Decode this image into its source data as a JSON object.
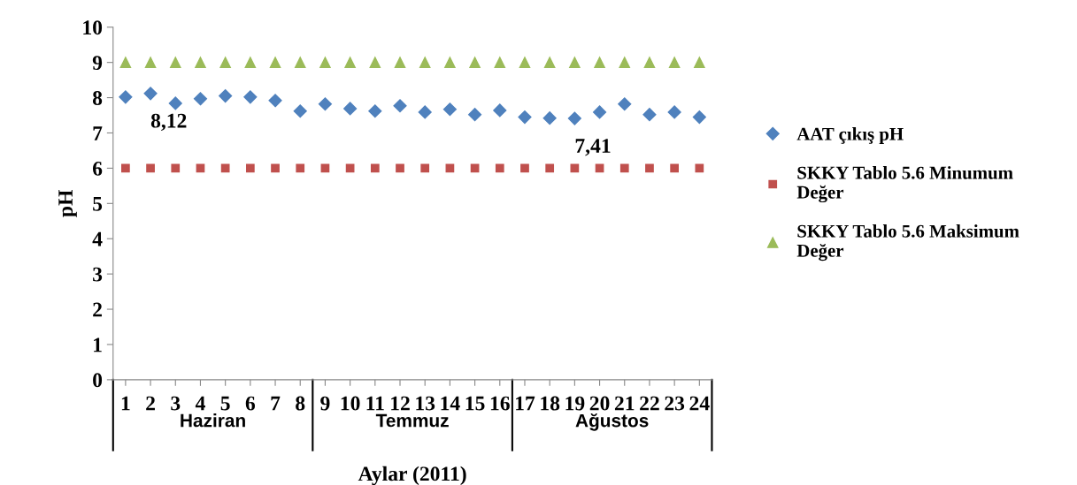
{
  "chart_data": {
    "type": "scatter",
    "xlabel": "Aylar (2011)",
    "ylabel": "pH",
    "categories": [
      "1",
      "2",
      "3",
      "4",
      "5",
      "6",
      "7",
      "8",
      "9",
      "10",
      "11",
      "12",
      "13",
      "14",
      "15",
      "16",
      "17",
      "18",
      "19",
      "20",
      "21",
      "22",
      "23",
      "24"
    ],
    "series": [
      {
        "name": "AAT çıkış pH",
        "color": "#4f81bd",
        "marker": "diamond",
        "values": [
          8.02,
          8.12,
          7.84,
          7.97,
          8.05,
          8.02,
          7.92,
          7.62,
          7.82,
          7.69,
          7.62,
          7.77,
          7.59,
          7.67,
          7.52,
          7.64,
          7.45,
          7.42,
          7.41,
          7.59,
          7.82,
          7.52,
          7.59,
          7.45
        ],
        "value_labels": [
          null,
          "8,12",
          null,
          null,
          null,
          null,
          null,
          null,
          null,
          null,
          null,
          null,
          null,
          null,
          null,
          null,
          null,
          null,
          "7,41",
          null,
          null,
          null,
          null,
          null
        ]
      },
      {
        "name": "SKKY Tablo 5.6 Minumum Değer",
        "color": "#c0504d",
        "marker": "square",
        "values": [
          6,
          6,
          6,
          6,
          6,
          6,
          6,
          6,
          6,
          6,
          6,
          6,
          6,
          6,
          6,
          6,
          6,
          6,
          6,
          6,
          6,
          6,
          6,
          6
        ]
      },
      {
        "name": "SKKY Tablo 5.6 Maksimum Değer",
        "color": "#9bbb59",
        "marker": "triangle",
        "values": [
          9,
          9,
          9,
          9,
          9,
          9,
          9,
          9,
          9,
          9,
          9,
          9,
          9,
          9,
          9,
          9,
          9,
          9,
          9,
          9,
          9,
          9,
          9,
          9
        ]
      }
    ],
    "annotations": [
      "Haziran",
      "Temmuz",
      "Ağustos"
    ],
    "ylim": [
      0,
      10
    ],
    "yticks": [
      0,
      1,
      2,
      3,
      4,
      5,
      6,
      7,
      8,
      9,
      10
    ],
    "grid": false,
    "legend": "right"
  }
}
